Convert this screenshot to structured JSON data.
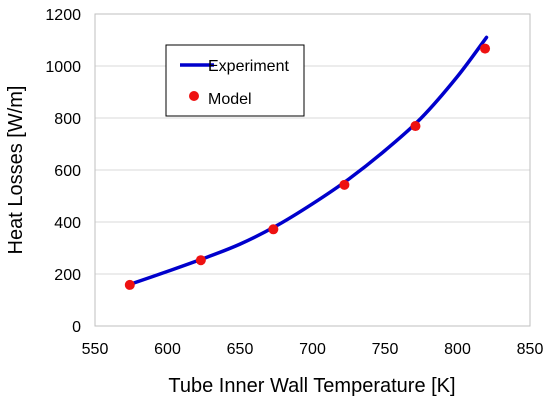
{
  "chart_data": {
    "type": "line",
    "xlabel": "Tube Inner Wall Temperature [K]",
    "ylabel": "Heat Losses [W/m]",
    "xlim": [
      550,
      850
    ],
    "ylim": [
      0,
      1200
    ],
    "xticks": [
      550,
      600,
      650,
      700,
      750,
      800,
      850
    ],
    "yticks": [
      0,
      200,
      400,
      600,
      800,
      1000,
      1200
    ],
    "grid": "horizontal",
    "legend": "upper-left",
    "series": [
      {
        "name": "Experiment",
        "style": "line",
        "color": "#0000cc",
        "x": [
          574,
          600,
          625,
          650,
          675,
          700,
          725,
          750,
          775,
          800,
          820
        ],
        "y": [
          160,
          210,
          260,
          315,
          385,
          470,
          565,
          675,
          800,
          960,
          1110
        ]
      },
      {
        "name": "Model",
        "style": "markers",
        "color": "#ee1111",
        "x": [
          574,
          623,
          673,
          722,
          771,
          819
        ],
        "y": [
          158,
          253,
          372,
          543,
          769,
          1067
        ]
      }
    ]
  }
}
